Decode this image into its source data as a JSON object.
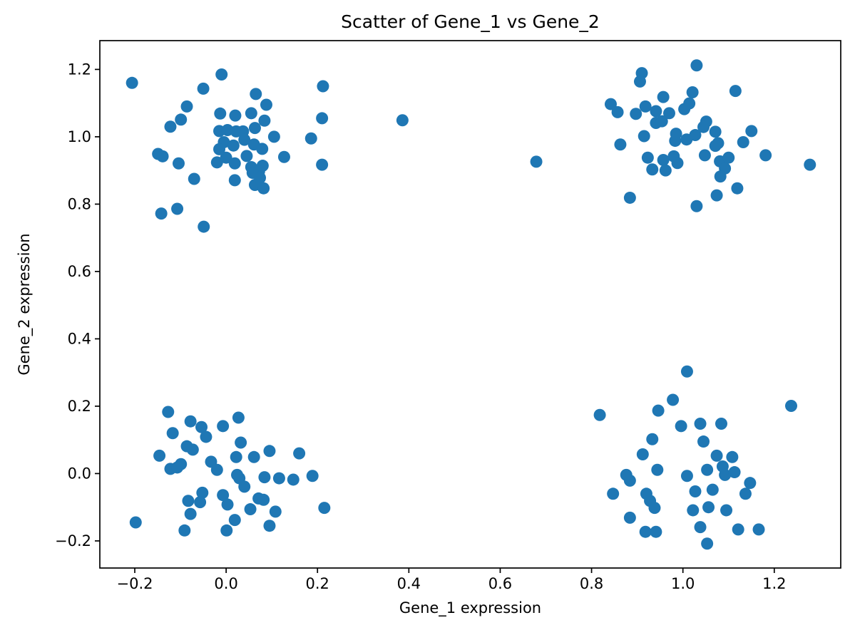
{
  "figure": {
    "background_color": "#ffffff",
    "spine_color": "#000000",
    "tick_color": "#000000"
  },
  "chart_data": {
    "type": "scatter",
    "title": "Scatter of Gene_1 vs Gene_2",
    "xlabel": "Gene_1 expression",
    "ylabel": "Gene_2 expression",
    "marker_color": "#1f77b4",
    "marker_radius_px": 8.5,
    "grid": false,
    "legend": null,
    "xlim": [
      -0.2765,
      1.3455
    ],
    "ylim": [
      -0.2805,
      1.2855
    ],
    "xticks": [
      {
        "v": -0.2,
        "label": "−0.2"
      },
      {
        "v": 0.0,
        "label": "0.0"
      },
      {
        "v": 0.2,
        "label": "0.2"
      },
      {
        "v": 0.4,
        "label": "0.4"
      },
      {
        "v": 0.6,
        "label": "0.6"
      },
      {
        "v": 0.8,
        "label": "0.8"
      },
      {
        "v": 1.0,
        "label": "1.0"
      },
      {
        "v": 1.2,
        "label": "1.2"
      }
    ],
    "yticks": [
      {
        "v": -0.2,
        "label": "−0.2"
      },
      {
        "v": 0.0,
        "label": "0.0"
      },
      {
        "v": 0.2,
        "label": "0.2"
      },
      {
        "v": 0.4,
        "label": "0.4"
      },
      {
        "v": 0.6,
        "label": "0.6"
      },
      {
        "v": 0.8,
        "label": "0.8"
      },
      {
        "v": 1.0,
        "label": "1.0"
      },
      {
        "v": 1.2,
        "label": "1.2"
      }
    ],
    "points": [
      [
        -0.206,
        1.16
      ],
      [
        -0.01,
        1.185
      ],
      [
        -0.05,
        1.143
      ],
      [
        0.065,
        1.127
      ],
      [
        0.212,
        1.15
      ],
      [
        0.088,
        1.095
      ],
      [
        -0.086,
        1.09
      ],
      [
        -0.099,
        1.051
      ],
      [
        -0.122,
        1.03
      ],
      [
        -0.013,
        1.069
      ],
      [
        0.02,
        1.063
      ],
      [
        0.055,
        1.07
      ],
      [
        0.084,
        1.048
      ],
      [
        0.21,
        1.055
      ],
      [
        -0.015,
        1.017
      ],
      [
        0.003,
        1.02
      ],
      [
        0.022,
        1.016
      ],
      [
        0.037,
        1.016
      ],
      [
        0.063,
        1.026
      ],
      [
        0.105,
        1.0
      ],
      [
        0.186,
        0.995
      ],
      [
        0.04,
        0.991
      ],
      [
        -0.005,
        0.984
      ],
      [
        0.016,
        0.974
      ],
      [
        -0.015,
        0.963
      ],
      [
        0.061,
        0.977
      ],
      [
        0.079,
        0.964
      ],
      [
        0.127,
        0.94
      ],
      [
        0.0,
        0.938
      ],
      [
        -0.02,
        0.924
      ],
      [
        0.019,
        0.921
      ],
      [
        0.045,
        0.943
      ],
      [
        0.055,
        0.91
      ],
      [
        0.08,
        0.914
      ],
      [
        0.072,
        0.897
      ],
      [
        -0.149,
        0.949
      ],
      [
        -0.139,
        0.942
      ],
      [
        -0.104,
        0.921
      ],
      [
        -0.07,
        0.875
      ],
      [
        0.019,
        0.871
      ],
      [
        0.058,
        0.893
      ],
      [
        0.074,
        0.878
      ],
      [
        0.063,
        0.857
      ],
      [
        0.082,
        0.847
      ],
      [
        0.21,
        0.917
      ],
      [
        -0.142,
        0.772
      ],
      [
        -0.107,
        0.786
      ],
      [
        -0.049,
        0.733
      ],
      [
        0.386,
        1.049
      ],
      [
        0.679,
        0.926
      ],
      [
        0.91,
        1.189
      ],
      [
        1.03,
        1.212
      ],
      [
        0.906,
        1.164
      ],
      [
        0.957,
        1.118
      ],
      [
        1.021,
        1.132
      ],
      [
        1.014,
        1.099
      ],
      [
        0.842,
        1.097
      ],
      [
        0.857,
        1.073
      ],
      [
        0.918,
        1.09
      ],
      [
        0.897,
        1.068
      ],
      [
        0.97,
        1.07
      ],
      [
        0.941,
        1.076
      ],
      [
        1.003,
        1.082
      ],
      [
        0.941,
        1.041
      ],
      [
        0.954,
        1.046
      ],
      [
        1.051,
        1.045
      ],
      [
        0.915,
        1.002
      ],
      [
        0.985,
        1.009
      ],
      [
        0.983,
        0.988
      ],
      [
        1.008,
        0.992
      ],
      [
        1.027,
        1.005
      ],
      [
        1.071,
        1.015
      ],
      [
        1.045,
        1.029
      ],
      [
        0.863,
        0.977
      ],
      [
        0.923,
        0.938
      ],
      [
        0.957,
        0.931
      ],
      [
        0.98,
        0.942
      ],
      [
        0.988,
        0.922
      ],
      [
        0.933,
        0.903
      ],
      [
        0.962,
        0.9
      ],
      [
        1.048,
        0.945
      ],
      [
        1.081,
        0.927
      ],
      [
        1.092,
        0.906
      ],
      [
        0.884,
        0.819
      ],
      [
        1.03,
        0.794
      ],
      [
        1.074,
        0.826
      ],
      [
        1.115,
        1.136
      ],
      [
        1.15,
        1.017
      ],
      [
        1.132,
        0.984
      ],
      [
        1.077,
        0.981
      ],
      [
        1.181,
        0.945
      ],
      [
        1.1,
        0.938
      ],
      [
        1.278,
        0.917
      ],
      [
        1.082,
        0.882
      ],
      [
        1.119,
        0.847
      ],
      [
        1.071,
        0.973
      ],
      [
        -0.127,
        0.183
      ],
      [
        -0.078,
        0.155
      ],
      [
        -0.054,
        0.138
      ],
      [
        -0.117,
        0.12
      ],
      [
        -0.044,
        0.109
      ],
      [
        -0.146,
        0.053
      ],
      [
        -0.086,
        0.081
      ],
      [
        -0.073,
        0.071
      ],
      [
        -0.099,
        0.028
      ],
      [
        -0.122,
        0.014
      ],
      [
        -0.107,
        0.018
      ],
      [
        -0.007,
        0.141
      ],
      [
        -0.033,
        0.035
      ],
      [
        -0.02,
        0.011
      ],
      [
        -0.052,
        -0.057
      ],
      [
        -0.083,
        -0.081
      ],
      [
        -0.057,
        -0.085
      ],
      [
        -0.007,
        -0.064
      ],
      [
        -0.078,
        -0.12
      ],
      [
        -0.198,
        -0.145
      ],
      [
        -0.091,
        -0.169
      ],
      [
        0.001,
        -0.169
      ],
      [
        0.027,
        0.166
      ],
      [
        0.032,
        0.092
      ],
      [
        0.022,
        0.049
      ],
      [
        0.061,
        0.049
      ],
      [
        0.095,
        0.067
      ],
      [
        0.16,
        0.06
      ],
      [
        0.029,
        -0.014
      ],
      [
        0.024,
        -0.004
      ],
      [
        0.084,
        -0.011
      ],
      [
        0.116,
        -0.014
      ],
      [
        0.147,
        -0.018
      ],
      [
        0.189,
        -0.007
      ],
      [
        0.04,
        -0.039
      ],
      [
        0.071,
        -0.074
      ],
      [
        0.082,
        -0.078
      ],
      [
        0.053,
        -0.106
      ],
      [
        0.108,
        -0.113
      ],
      [
        0.215,
        -0.102
      ],
      [
        0.019,
        -0.138
      ],
      [
        0.095,
        -0.155
      ],
      [
        0.003,
        -0.092
      ],
      [
        1.009,
        0.303
      ],
      [
        0.978,
        0.219
      ],
      [
        0.946,
        0.187
      ],
      [
        0.818,
        0.174
      ],
      [
        0.996,
        0.141
      ],
      [
        1.038,
        0.148
      ],
      [
        0.933,
        0.102
      ],
      [
        1.045,
        0.095
      ],
      [
        0.912,
        0.057
      ],
      [
        0.876,
        -0.004
      ],
      [
        0.884,
        -0.021
      ],
      [
        0.847,
        -0.06
      ],
      [
        0.944,
        0.011
      ],
      [
        1.009,
        -0.007
      ],
      [
        1.053,
        0.011
      ],
      [
        1.065,
        -0.048
      ],
      [
        0.92,
        -0.06
      ],
      [
        0.928,
        -0.081
      ],
      [
        0.938,
        -0.102
      ],
      [
        1.027,
        -0.053
      ],
      [
        1.022,
        -0.109
      ],
      [
        0.884,
        -0.131
      ],
      [
        1.038,
        -0.159
      ],
      [
        0.918,
        -0.173
      ],
      [
        0.941,
        -0.173
      ],
      [
        1.053,
        -0.208
      ],
      [
        1.237,
        0.201
      ],
      [
        1.084,
        0.148
      ],
      [
        1.108,
        0.049
      ],
      [
        1.074,
        0.053
      ],
      [
        1.087,
        0.021
      ],
      [
        1.092,
        -0.004
      ],
      [
        1.113,
        0.004
      ],
      [
        1.147,
        -0.028
      ],
      [
        1.137,
        -0.06
      ],
      [
        1.095,
        -0.109
      ],
      [
        1.121,
        -0.166
      ],
      [
        1.166,
        -0.166
      ],
      [
        1.056,
        -0.1
      ]
    ]
  }
}
